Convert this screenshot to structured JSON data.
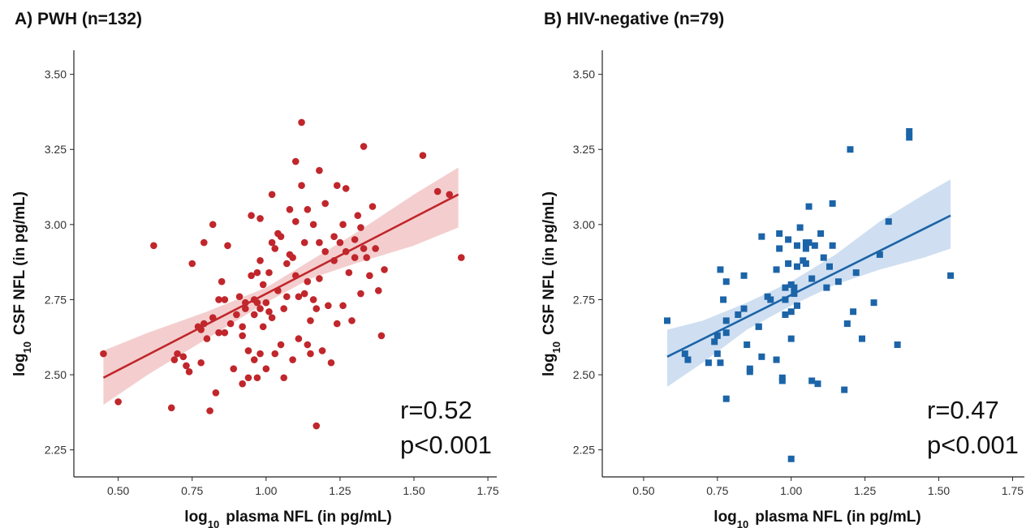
{
  "chart_data": [
    {
      "type": "scatter",
      "panel_title": "A) PWH (n=132)",
      "xlabel_prefix": "log",
      "xlabel_sub": "10",
      "xlabel_rest": "plasma NFL (in pg/mL)",
      "ylabel_prefix": "log",
      "ylabel_sub": "10",
      "ylabel_rest": "CSF NFL (in pg/mL)",
      "xlim": [
        0.35,
        1.78
      ],
      "ylim": [
        2.16,
        3.58
      ],
      "xticks": [
        "0.50",
        "0.75",
        "1.00",
        "1.25",
        "1.50",
        "1.75"
      ],
      "yticks": [
        "2.25",
        "2.50",
        "2.75",
        "3.00",
        "3.25",
        "3.50"
      ],
      "marker": "circle",
      "color": "#c0262b",
      "band_color": "#f2c6c6",
      "stat_r": "r=0.52",
      "stat_p": "p<0.001",
      "fit": {
        "x": [
          0.45,
          1.65
        ],
        "y": [
          2.49,
          3.1
        ]
      },
      "band": [
        {
          "x": 0.45,
          "lo": 2.4,
          "hi": 2.58
        },
        {
          "x": 0.6,
          "lo": 2.5,
          "hi": 2.64
        },
        {
          "x": 0.8,
          "lo": 2.62,
          "hi": 2.71
        },
        {
          "x": 1.0,
          "lo": 2.74,
          "hi": 2.79
        },
        {
          "x": 1.15,
          "lo": 2.82,
          "hi": 2.88
        },
        {
          "x": 1.3,
          "lo": 2.87,
          "hi": 2.97
        },
        {
          "x": 1.5,
          "lo": 2.93,
          "hi": 3.1
        },
        {
          "x": 1.65,
          "lo": 2.99,
          "hi": 3.19
        }
      ],
      "points": [
        {
          "x": 0.45,
          "y": 2.57
        },
        {
          "x": 0.5,
          "y": 2.41
        },
        {
          "x": 0.62,
          "y": 2.93
        },
        {
          "x": 0.68,
          "y": 2.39
        },
        {
          "x": 0.69,
          "y": 2.55
        },
        {
          "x": 0.7,
          "y": 2.57
        },
        {
          "x": 0.72,
          "y": 2.56
        },
        {
          "x": 0.73,
          "y": 2.53
        },
        {
          "x": 0.74,
          "y": 2.51
        },
        {
          "x": 0.75,
          "y": 2.87
        },
        {
          "x": 0.77,
          "y": 2.66
        },
        {
          "x": 0.78,
          "y": 2.65
        },
        {
          "x": 0.78,
          "y": 2.54
        },
        {
          "x": 0.79,
          "y": 2.94
        },
        {
          "x": 0.79,
          "y": 2.67
        },
        {
          "x": 0.8,
          "y": 2.62
        },
        {
          "x": 0.81,
          "y": 2.38
        },
        {
          "x": 0.82,
          "y": 3.0
        },
        {
          "x": 0.82,
          "y": 2.69
        },
        {
          "x": 0.83,
          "y": 2.44
        },
        {
          "x": 0.84,
          "y": 2.75
        },
        {
          "x": 0.84,
          "y": 2.64
        },
        {
          "x": 0.85,
          "y": 2.81
        },
        {
          "x": 0.86,
          "y": 2.75
        },
        {
          "x": 0.86,
          "y": 2.64
        },
        {
          "x": 0.87,
          "y": 2.93
        },
        {
          "x": 0.88,
          "y": 2.67
        },
        {
          "x": 0.89,
          "y": 2.52
        },
        {
          "x": 0.9,
          "y": 2.7
        },
        {
          "x": 0.91,
          "y": 2.76
        },
        {
          "x": 0.92,
          "y": 2.66
        },
        {
          "x": 0.92,
          "y": 2.63
        },
        {
          "x": 0.92,
          "y": 2.47
        },
        {
          "x": 0.93,
          "y": 2.74
        },
        {
          "x": 0.93,
          "y": 2.72
        },
        {
          "x": 0.94,
          "y": 2.58
        },
        {
          "x": 0.94,
          "y": 2.49
        },
        {
          "x": 0.95,
          "y": 3.03
        },
        {
          "x": 0.95,
          "y": 2.83
        },
        {
          "x": 0.96,
          "y": 2.75
        },
        {
          "x": 0.96,
          "y": 2.7
        },
        {
          "x": 0.96,
          "y": 2.55
        },
        {
          "x": 0.97,
          "y": 2.84
        },
        {
          "x": 0.97,
          "y": 2.74
        },
        {
          "x": 0.97,
          "y": 2.49
        },
        {
          "x": 0.98,
          "y": 3.02
        },
        {
          "x": 0.98,
          "y": 2.88
        },
        {
          "x": 0.98,
          "y": 2.72
        },
        {
          "x": 0.98,
          "y": 2.57
        },
        {
          "x": 0.99,
          "y": 2.8
        },
        {
          "x": 0.99,
          "y": 2.66
        },
        {
          "x": 1.0,
          "y": 2.74
        },
        {
          "x": 1.0,
          "y": 2.52
        },
        {
          "x": 1.01,
          "y": 2.84
        },
        {
          "x": 1.01,
          "y": 2.71
        },
        {
          "x": 1.02,
          "y": 3.1
        },
        {
          "x": 1.02,
          "y": 2.94
        },
        {
          "x": 1.02,
          "y": 2.69
        },
        {
          "x": 1.03,
          "y": 2.92
        },
        {
          "x": 1.03,
          "y": 2.57
        },
        {
          "x": 1.04,
          "y": 2.97
        },
        {
          "x": 1.04,
          "y": 2.78
        },
        {
          "x": 1.05,
          "y": 2.96
        },
        {
          "x": 1.05,
          "y": 2.6
        },
        {
          "x": 1.06,
          "y": 2.72
        },
        {
          "x": 1.06,
          "y": 2.49
        },
        {
          "x": 1.07,
          "y": 2.87
        },
        {
          "x": 1.07,
          "y": 2.76
        },
        {
          "x": 1.08,
          "y": 3.05
        },
        {
          "x": 1.08,
          "y": 2.9
        },
        {
          "x": 1.09,
          "y": 2.89
        },
        {
          "x": 1.09,
          "y": 2.55
        },
        {
          "x": 1.1,
          "y": 3.21
        },
        {
          "x": 1.1,
          "y": 3.01
        },
        {
          "x": 1.1,
          "y": 2.83
        },
        {
          "x": 1.11,
          "y": 2.76
        },
        {
          "x": 1.11,
          "y": 2.62
        },
        {
          "x": 1.12,
          "y": 3.34
        },
        {
          "x": 1.12,
          "y": 3.13
        },
        {
          "x": 1.13,
          "y": 2.94
        },
        {
          "x": 1.13,
          "y": 2.77
        },
        {
          "x": 1.14,
          "y": 3.05
        },
        {
          "x": 1.14,
          "y": 2.81
        },
        {
          "x": 1.14,
          "y": 2.6
        },
        {
          "x": 1.15,
          "y": 2.68
        },
        {
          "x": 1.15,
          "y": 2.57
        },
        {
          "x": 1.16,
          "y": 3.0
        },
        {
          "x": 1.16,
          "y": 2.75
        },
        {
          "x": 1.17,
          "y": 2.33
        },
        {
          "x": 1.17,
          "y": 2.72
        },
        {
          "x": 1.18,
          "y": 3.18
        },
        {
          "x": 1.18,
          "y": 2.94
        },
        {
          "x": 1.18,
          "y": 2.82
        },
        {
          "x": 1.19,
          "y": 2.58
        },
        {
          "x": 1.2,
          "y": 3.07
        },
        {
          "x": 1.2,
          "y": 2.91
        },
        {
          "x": 1.21,
          "y": 2.73
        },
        {
          "x": 1.22,
          "y": 2.54
        },
        {
          "x": 1.23,
          "y": 2.96
        },
        {
          "x": 1.23,
          "y": 2.88
        },
        {
          "x": 1.24,
          "y": 3.13
        },
        {
          "x": 1.24,
          "y": 2.67
        },
        {
          "x": 1.25,
          "y": 2.94
        },
        {
          "x": 1.26,
          "y": 3.0
        },
        {
          "x": 1.26,
          "y": 2.73
        },
        {
          "x": 1.27,
          "y": 3.12
        },
        {
          "x": 1.27,
          "y": 2.91
        },
        {
          "x": 1.28,
          "y": 2.84
        },
        {
          "x": 1.29,
          "y": 2.68
        },
        {
          "x": 1.3,
          "y": 2.95
        },
        {
          "x": 1.3,
          "y": 2.89
        },
        {
          "x": 1.31,
          "y": 3.03
        },
        {
          "x": 1.32,
          "y": 2.99
        },
        {
          "x": 1.32,
          "y": 2.77
        },
        {
          "x": 1.33,
          "y": 3.26
        },
        {
          "x": 1.33,
          "y": 2.92
        },
        {
          "x": 1.34,
          "y": 2.89
        },
        {
          "x": 1.35,
          "y": 2.83
        },
        {
          "x": 1.36,
          "y": 3.06
        },
        {
          "x": 1.37,
          "y": 2.92
        },
        {
          "x": 1.38,
          "y": 2.78
        },
        {
          "x": 1.39,
          "y": 2.63
        },
        {
          "x": 1.4,
          "y": 2.85
        },
        {
          "x": 1.53,
          "y": 3.23
        },
        {
          "x": 1.58,
          "y": 3.11
        },
        {
          "x": 1.62,
          "y": 3.1
        },
        {
          "x": 1.66,
          "y": 2.89
        }
      ]
    },
    {
      "type": "scatter",
      "panel_title": "B) HIV-negative (n=79)",
      "xlabel_prefix": "log",
      "xlabel_sub": "10",
      "xlabel_rest": "plasma NFL (in pg/mL)",
      "ylabel_prefix": "log",
      "ylabel_sub": "10",
      "ylabel_rest": "CSF NFL (in pg/mL)",
      "xlim": [
        0.36,
        1.79
      ],
      "ylim": [
        2.16,
        3.58
      ],
      "xticks": [
        "0.50",
        "0.75",
        "1.00",
        "1.25",
        "1.50",
        "1.75"
      ],
      "yticks": [
        "2.25",
        "2.50",
        "2.75",
        "3.00",
        "3.25",
        "3.50"
      ],
      "marker": "square",
      "color": "#1c64a8",
      "band_color": "#c7d9ef",
      "stat_r": "r=0.47",
      "stat_p": "p<0.001",
      "fit": {
        "x": [
          0.58,
          1.54
        ],
        "y": [
          2.56,
          3.03
        ]
      },
      "band": [
        {
          "x": 0.58,
          "lo": 2.46,
          "hi": 2.65
        },
        {
          "x": 0.7,
          "lo": 2.54,
          "hi": 2.68
        },
        {
          "x": 0.85,
          "lo": 2.65,
          "hi": 2.74
        },
        {
          "x": 1.0,
          "lo": 2.73,
          "hi": 2.81
        },
        {
          "x": 1.15,
          "lo": 2.8,
          "hi": 2.9
        },
        {
          "x": 1.3,
          "lo": 2.85,
          "hi": 3.01
        },
        {
          "x": 1.45,
          "lo": 2.89,
          "hi": 3.1
        },
        {
          "x": 1.54,
          "lo": 2.92,
          "hi": 3.15
        }
      ],
      "points": [
        {
          "x": 0.58,
          "y": 2.68
        },
        {
          "x": 0.64,
          "y": 2.57
        },
        {
          "x": 0.65,
          "y": 2.55
        },
        {
          "x": 0.72,
          "y": 2.54
        },
        {
          "x": 0.74,
          "y": 2.61
        },
        {
          "x": 0.75,
          "y": 2.63
        },
        {
          "x": 0.75,
          "y": 2.57
        },
        {
          "x": 0.76,
          "y": 2.54
        },
        {
          "x": 0.76,
          "y": 2.85
        },
        {
          "x": 0.77,
          "y": 2.75
        },
        {
          "x": 0.78,
          "y": 2.81
        },
        {
          "x": 0.78,
          "y": 2.68
        },
        {
          "x": 0.78,
          "y": 2.64
        },
        {
          "x": 0.78,
          "y": 2.42
        },
        {
          "x": 0.82,
          "y": 2.7
        },
        {
          "x": 0.84,
          "y": 2.72
        },
        {
          "x": 0.84,
          "y": 2.83
        },
        {
          "x": 0.85,
          "y": 2.6
        },
        {
          "x": 0.86,
          "y": 2.51
        },
        {
          "x": 0.86,
          "y": 2.52
        },
        {
          "x": 0.89,
          "y": 2.66
        },
        {
          "x": 0.89,
          "y": 2.66
        },
        {
          "x": 0.9,
          "y": 2.56
        },
        {
          "x": 0.9,
          "y": 2.96
        },
        {
          "x": 0.92,
          "y": 2.76
        },
        {
          "x": 0.93,
          "y": 2.75
        },
        {
          "x": 0.95,
          "y": 2.55
        },
        {
          "x": 0.95,
          "y": 2.85
        },
        {
          "x": 0.96,
          "y": 2.92
        },
        {
          "x": 0.96,
          "y": 2.97
        },
        {
          "x": 0.97,
          "y": 2.49
        },
        {
          "x": 0.97,
          "y": 2.48
        },
        {
          "x": 0.98,
          "y": 2.7
        },
        {
          "x": 0.98,
          "y": 2.75
        },
        {
          "x": 0.98,
          "y": 2.79
        },
        {
          "x": 0.99,
          "y": 2.87
        },
        {
          "x": 0.99,
          "y": 2.95
        },
        {
          "x": 1.0,
          "y": 2.22
        },
        {
          "x": 1.0,
          "y": 2.62
        },
        {
          "x": 1.0,
          "y": 2.71
        },
        {
          "x": 1.0,
          "y": 2.8
        },
        {
          "x": 1.01,
          "y": 2.79
        },
        {
          "x": 1.01,
          "y": 2.77
        },
        {
          "x": 1.02,
          "y": 2.73
        },
        {
          "x": 1.02,
          "y": 2.86
        },
        {
          "x": 1.02,
          "y": 2.93
        },
        {
          "x": 1.03,
          "y": 2.99
        },
        {
          "x": 1.04,
          "y": 2.88
        },
        {
          "x": 1.05,
          "y": 2.94
        },
        {
          "x": 1.05,
          "y": 2.92
        },
        {
          "x": 1.05,
          "y": 2.87
        },
        {
          "x": 1.06,
          "y": 3.06
        },
        {
          "x": 1.06,
          "y": 2.94
        },
        {
          "x": 1.07,
          "y": 2.48
        },
        {
          "x": 1.07,
          "y": 2.82
        },
        {
          "x": 1.08,
          "y": 2.93
        },
        {
          "x": 1.09,
          "y": 2.47
        },
        {
          "x": 1.1,
          "y": 2.97
        },
        {
          "x": 1.11,
          "y": 2.89
        },
        {
          "x": 1.12,
          "y": 2.79
        },
        {
          "x": 1.13,
          "y": 2.86
        },
        {
          "x": 1.14,
          "y": 3.07
        },
        {
          "x": 1.14,
          "y": 2.93
        },
        {
          "x": 1.16,
          "y": 2.81
        },
        {
          "x": 1.18,
          "y": 2.45
        },
        {
          "x": 1.19,
          "y": 2.67
        },
        {
          "x": 1.2,
          "y": 3.25
        },
        {
          "x": 1.21,
          "y": 2.71
        },
        {
          "x": 1.22,
          "y": 2.84
        },
        {
          "x": 1.24,
          "y": 2.62
        },
        {
          "x": 1.28,
          "y": 2.74
        },
        {
          "x": 1.3,
          "y": 2.9
        },
        {
          "x": 1.33,
          "y": 3.01
        },
        {
          "x": 1.36,
          "y": 2.6
        },
        {
          "x": 1.4,
          "y": 3.31
        },
        {
          "x": 1.4,
          "y": 3.29
        },
        {
          "x": 1.54,
          "y": 2.83
        }
      ]
    }
  ]
}
